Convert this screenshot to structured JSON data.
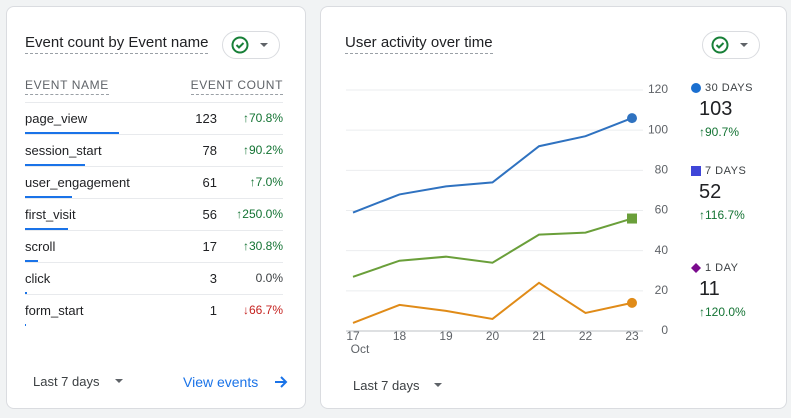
{
  "event_card": {
    "title": "Event count by Event name",
    "columns": [
      "EVENT NAME",
      "EVENT COUNT"
    ],
    "rows": [
      {
        "name": "page_view",
        "count": 123,
        "change": "70.8%",
        "trend": "up"
      },
      {
        "name": "session_start",
        "count": 78,
        "change": "90.2%",
        "trend": "up"
      },
      {
        "name": "user_engagement",
        "count": 61,
        "change": "7.0%",
        "trend": "up"
      },
      {
        "name": "first_visit",
        "count": 56,
        "change": "250.0%",
        "trend": "up"
      },
      {
        "name": "scroll",
        "count": 17,
        "change": "30.8%",
        "trend": "up"
      },
      {
        "name": "click",
        "count": 3,
        "change": "0.0%",
        "trend": "none"
      },
      {
        "name": "form_start",
        "count": 1,
        "change": "66.7%",
        "trend": "down"
      }
    ],
    "date_range": "Last 7 days",
    "link": "View events"
  },
  "chart_data": {
    "type": "line",
    "title": "User activity over time",
    "categories": [
      "17",
      "18",
      "19",
      "20",
      "21",
      "22",
      "23"
    ],
    "month": "Oct",
    "ylim": [
      0,
      120
    ],
    "yticks": [
      0,
      20,
      40,
      60,
      80,
      100,
      120
    ],
    "grid": true,
    "series": [
      {
        "name": "30 DAYS",
        "color": "#2f72c0",
        "legend_color": "#1a6fd0",
        "marker": "circle",
        "total": 103,
        "change": "90.7%",
        "trend": "up",
        "values": [
          59,
          68,
          72,
          74,
          92,
          97,
          106
        ]
      },
      {
        "name": "7 DAYS",
        "color": "#6a9f3a",
        "legend_color": "#3f46d8",
        "marker": "square",
        "total": 52,
        "change": "116.7%",
        "trend": "up",
        "values": [
          27,
          35,
          37,
          34,
          48,
          49,
          56
        ]
      },
      {
        "name": "1 DAY",
        "color": "#e08b18",
        "legend_color": "#7a0b8d",
        "marker": "diamond",
        "total": 11,
        "change": "120.0%",
        "trend": "up",
        "values": [
          4,
          13,
          10,
          6,
          24,
          9,
          14
        ]
      }
    ],
    "date_range": "Last 7 days"
  }
}
